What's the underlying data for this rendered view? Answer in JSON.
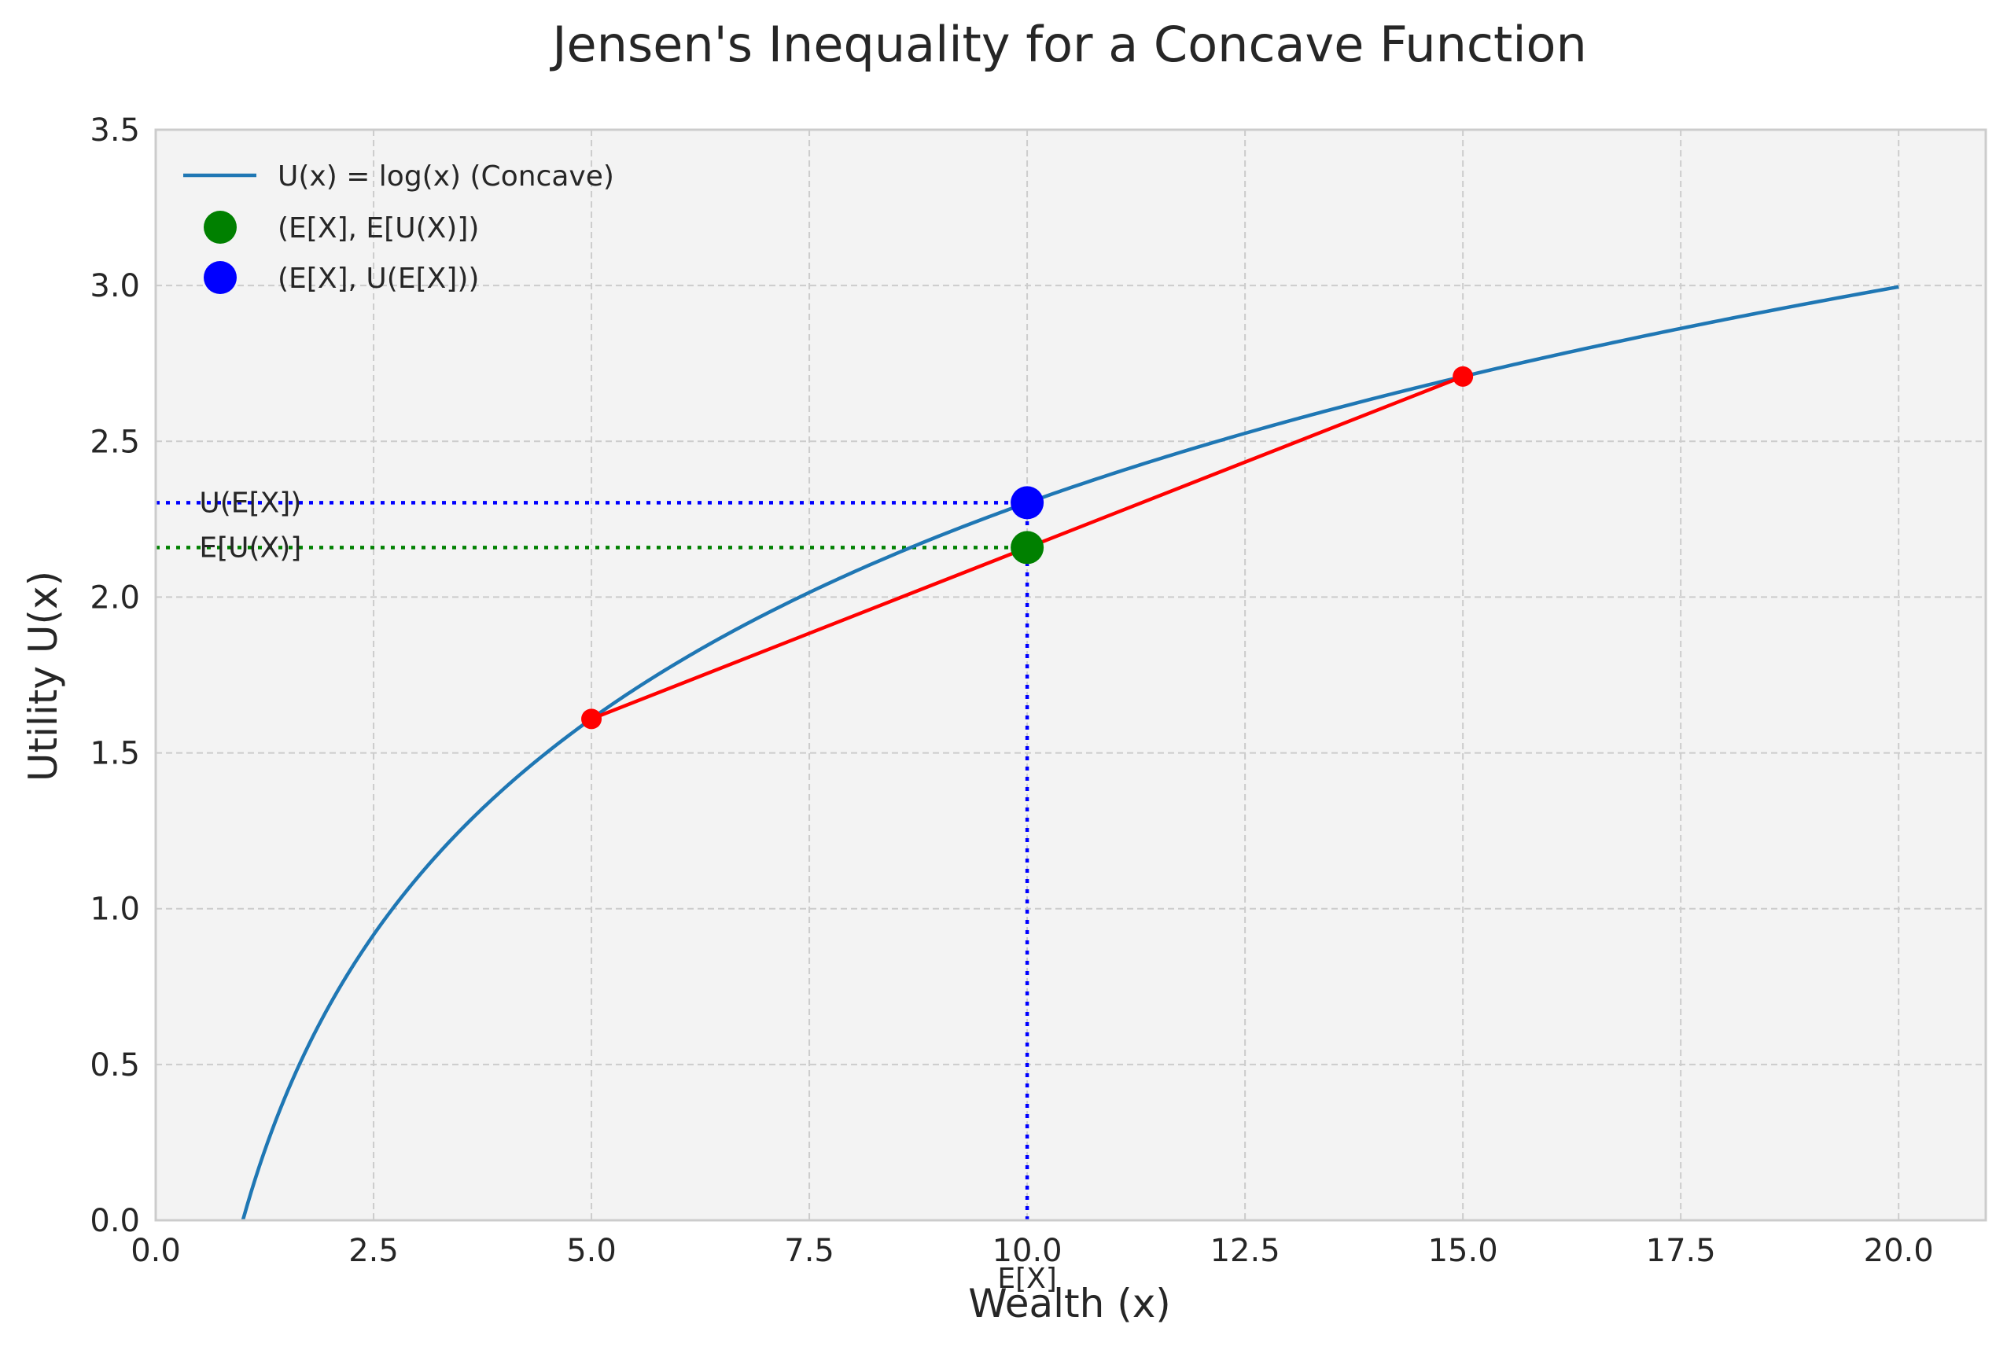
{
  "chart_data": {
    "type": "line",
    "title": "Jensen's Inequality for a Concave Function",
    "xlabel": "Wealth (x)",
    "ylabel": "Utility U(x)",
    "xlim": [
      0,
      21
    ],
    "ylim": [
      0,
      3.5
    ],
    "xticks": [
      "0.0",
      "2.5",
      "5.0",
      "7.5",
      "10.0",
      "12.5",
      "15.0",
      "17.5",
      "20.0"
    ],
    "yticks": [
      "0.0",
      "0.5",
      "1.0",
      "1.5",
      "2.0",
      "2.5",
      "3.0",
      "3.5"
    ],
    "grid": true,
    "legend_position": "top-left",
    "curve": {
      "function": "log",
      "x_range": [
        1,
        20
      ],
      "color": "#1f77b4",
      "legend_label": "U(x) = log(x) (Concave)"
    },
    "chord": {
      "points": [
        {
          "x": 5,
          "y": 1.609
        },
        {
          "x": 15,
          "y": 2.708
        }
      ],
      "color": "#ff0000"
    },
    "points": [
      {
        "label": "(E[X], E[U(X)])",
        "x": 10,
        "y": 2.159,
        "color": "#008000"
      },
      {
        "label": "(E[X], U(E[X]))",
        "x": 10,
        "y": 2.303,
        "color": "#0000ff"
      }
    ],
    "reference_lines": [
      {
        "orientation": "horizontal",
        "y": 2.303,
        "x_to": 10,
        "color": "#0000ff",
        "label": "U(E[X])"
      },
      {
        "orientation": "horizontal",
        "y": 2.159,
        "x_to": 10,
        "color": "#008000",
        "label": "E[U(X)]"
      },
      {
        "orientation": "vertical",
        "x": 10,
        "y_to": 2.303,
        "color": "#0000ff",
        "label": "E[X]"
      }
    ],
    "background_color": "#f3f3f3",
    "grid_color": "#cccccc"
  }
}
